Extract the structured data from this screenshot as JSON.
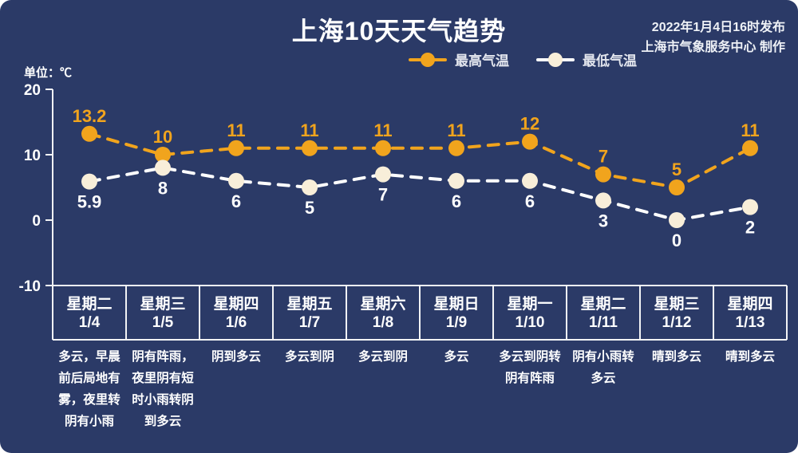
{
  "page": {
    "title": "上海10天天气趋势",
    "publish_time": "2022年1月4日16时发布",
    "publish_credit": "上海市气象服务中心 制作",
    "unit_label": "单位：℃"
  },
  "colors": {
    "background": "#2b3a67",
    "high_series": "#f1a41d",
    "low_series_line": "#ffffff",
    "low_marker": "#f8eed9",
    "grid_line": "#f2f3f5",
    "text": "#ffffff"
  },
  "chart_data": {
    "type": "line",
    "title": "上海10天天气趋势",
    "categories": [
      "星期二 1/4",
      "星期三 1/5",
      "星期四 1/6",
      "星期五 1/7",
      "星期六 1/8",
      "星期日 1/9",
      "星期一 1/10",
      "星期二 1/11",
      "星期三 1/12",
      "星期四 1/13"
    ],
    "series": [
      {
        "name": "最高气温",
        "values": [
          13.2,
          10,
          11,
          11,
          11,
          11,
          12,
          7,
          5,
          11
        ],
        "line_color": "#f1a41d",
        "marker_color": "#f1a41d",
        "label_color": "#f1a41d",
        "label_position": "above"
      },
      {
        "name": "最低气温",
        "values": [
          5.9,
          8,
          6,
          5,
          7,
          6,
          6,
          3,
          0,
          2
        ],
        "line_color": "#ffffff",
        "marker_color": "#f8eed9",
        "label_color": "#ffffff",
        "label_position": "below"
      }
    ],
    "ylabel": "单位：℃",
    "yticks": [
      20,
      10,
      0,
      -10
    ],
    "ylim": [
      -10,
      20
    ],
    "grid": false,
    "line_style": "dashed",
    "markers": true,
    "legend_position": "top-center"
  },
  "table": {
    "days": [
      {
        "weekday": "星期二",
        "date": "1/4",
        "forecast": "多云，早晨前后局地有雾，夜里转阴有小雨"
      },
      {
        "weekday": "星期三",
        "date": "1/5",
        "forecast": "阴有阵雨，夜里阴有短时小雨转阴到多云"
      },
      {
        "weekday": "星期四",
        "date": "1/6",
        "forecast": "阴到多云"
      },
      {
        "weekday": "星期五",
        "date": "1/7",
        "forecast": "多云到阴"
      },
      {
        "weekday": "星期六",
        "date": "1/8",
        "forecast": "多云到阴"
      },
      {
        "weekday": "星期日",
        "date": "1/9",
        "forecast": "多云"
      },
      {
        "weekday": "星期一",
        "date": "1/10",
        "forecast": "多云到阴转阴有阵雨"
      },
      {
        "weekday": "星期二",
        "date": "1/11",
        "forecast": "阴有小雨转多云"
      },
      {
        "weekday": "星期三",
        "date": "1/12",
        "forecast": "晴到多云"
      },
      {
        "weekday": "星期四",
        "date": "1/13",
        "forecast": "晴到多云"
      }
    ]
  }
}
